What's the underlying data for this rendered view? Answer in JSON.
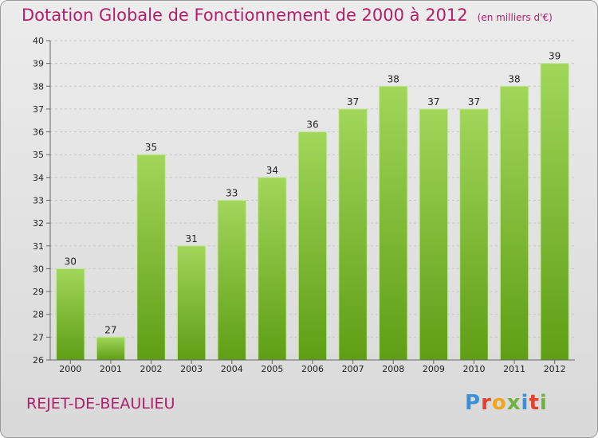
{
  "header": {
    "title": "Dotation Globale de Fonctionnement de 2000 à 2012",
    "subtitle": "(en milliers d'€)"
  },
  "footer": {
    "commune": "REJET-DE-BEAULIEU",
    "logo": "Proxiti"
  },
  "colors": {
    "title": "#b0206a",
    "bar_top": "#a1d65a",
    "bar_bottom": "#5f9e15",
    "grid": "#c8c8c8"
  },
  "chart_data": {
    "type": "bar",
    "categories": [
      "2000",
      "2001",
      "2002",
      "2003",
      "2004",
      "2005",
      "2006",
      "2007",
      "2008",
      "2009",
      "2010",
      "2011",
      "2012"
    ],
    "values": [
      30,
      27,
      35,
      31,
      33,
      34,
      36,
      37,
      38,
      37,
      37,
      38,
      39
    ],
    "title": "Dotation Globale de Fonctionnement de 2000 à 2012",
    "subtitle": "(en milliers d'€)",
    "ylim": [
      26,
      40
    ],
    "yticks": [
      26,
      27,
      28,
      29,
      30,
      31,
      32,
      33,
      34,
      35,
      36,
      37,
      38,
      39,
      40
    ],
    "grid": true,
    "data_labels": true
  }
}
